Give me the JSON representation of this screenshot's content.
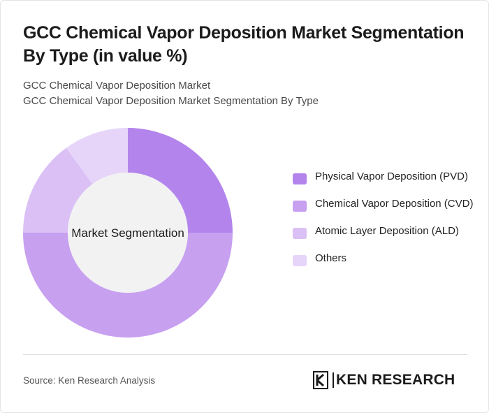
{
  "header": {
    "title": "GCC Chemical Vapor Deposition Market Segmentation By Type (in value %)",
    "subtitle_line1": "GCC Chemical Vapor Deposition Market",
    "subtitle_line2": "GCC Chemical Vapor Deposition Market Segmentation By Type"
  },
  "chart_data": {
    "type": "pie",
    "variant": "donut",
    "center_label": "Market Segmentation",
    "categories": [
      "Physical Vapor Deposition (PVD)",
      "Chemical Vapor Deposition (CVD)",
      "Atomic Layer Deposition (ALD)",
      "Others"
    ],
    "values": [
      25,
      50,
      15,
      10
    ],
    "colors": [
      "#b385ec",
      "#c7a0f0",
      "#dbc0f6",
      "#e6d5f9"
    ],
    "legend_position": "right"
  },
  "footer": {
    "source": "Source: Ken Research Analysis",
    "logo_text": "KEN RESEARCH"
  }
}
